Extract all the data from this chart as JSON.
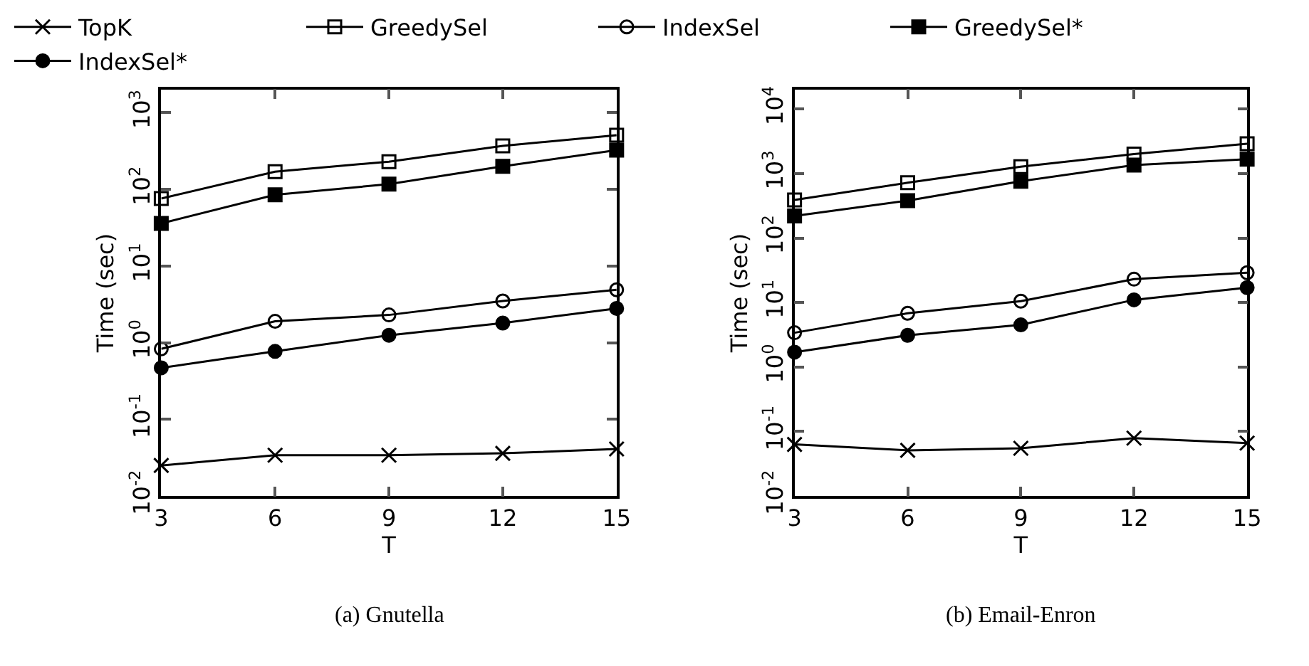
{
  "chart_data": [
    {
      "type": "line",
      "title": "(a) Gnutella",
      "xlabel": "T",
      "ylabel": "Time (sec)",
      "x": [
        3,
        6,
        9,
        12,
        15
      ],
      "log": "y",
      "legend": "top",
      "line_style": "solid",
      "xlim": [
        3,
        15
      ],
      "xticks": [
        3,
        6,
        9,
        12,
        15
      ],
      "ylim": [
        0.01,
        2000
      ],
      "yticks": [
        {
          "value": 0.01,
          "label": "10$^{-2}$"
        },
        {
          "value": 0.1,
          "label": "10$^{-1}$"
        },
        {
          "value": 1,
          "label": "10$^{0}$"
        },
        {
          "value": 10,
          "label": "10$^{1}$"
        },
        {
          "value": 100,
          "label": "10$^{2}$"
        },
        {
          "value": 1000,
          "label": "10$^{3}$"
        }
      ],
      "series": [
        {
          "name": "TopK",
          "color": "#000000",
          "marker": "cross",
          "values": [
            0.025,
            0.034,
            0.034,
            0.036,
            0.041
          ]
        },
        {
          "name": "GreedySel",
          "color": "#000000",
          "marker": "square-open",
          "values": [
            76,
            170,
            230,
            370,
            510
          ]
        },
        {
          "name": "IndexSel",
          "color": "#000000",
          "marker": "circle-open",
          "values": [
            0.83,
            1.9,
            2.3,
            3.5,
            4.9
          ]
        },
        {
          "name": "GreedySel*",
          "color": "#000000",
          "marker": "square",
          "values": [
            36,
            85,
            117,
            200,
            325
          ]
        },
        {
          "name": "IndexSel*",
          "color": "#000000",
          "marker": "circle",
          "values": [
            0.47,
            0.77,
            1.25,
            1.8,
            2.8
          ]
        }
      ]
    },
    {
      "type": "line",
      "title": "(b) Email-Enron",
      "xlabel": "T",
      "ylabel": "Time (sec)",
      "x": [
        3,
        6,
        9,
        12,
        15
      ],
      "log": "y",
      "line_style": "solid",
      "xlim": [
        3,
        15
      ],
      "xticks": [
        3,
        6,
        9,
        12,
        15
      ],
      "ylim": [
        0.01,
        20000
      ],
      "yticks": [
        {
          "value": 0.01,
          "label": "10$^{-2}$"
        },
        {
          "value": 0.1,
          "label": "10$^{-1}$"
        },
        {
          "value": 1,
          "label": "10$^{0}$"
        },
        {
          "value": 10,
          "label": "10$^{1}$"
        },
        {
          "value": 100,
          "label": "10$^{2}$"
        },
        {
          "value": 1000,
          "label": "10$^{3}$"
        },
        {
          "value": 10000,
          "label": "10$^{4}$"
        }
      ],
      "series": [
        {
          "color": "#000000",
          "marker": "cross",
          "values": [
            0.063,
            0.051,
            0.055,
            0.079,
            0.066
          ]
        },
        {
          "color": "#000000",
          "marker": "square-open",
          "values": [
            390,
            720,
            1280,
            2000,
            2900
          ]
        },
        {
          "color": "#000000",
          "marker": "circle-open",
          "values": [
            3.4,
            6.8,
            10.5,
            23,
            29
          ]
        },
        {
          "color": "#000000",
          "marker": "square",
          "values": [
            220,
            380,
            760,
            1350,
            1670
          ]
        },
        {
          "color": "#000000",
          "marker": "circle",
          "values": [
            1.7,
            3.1,
            4.5,
            11,
            17
          ]
        }
      ]
    }
  ]
}
